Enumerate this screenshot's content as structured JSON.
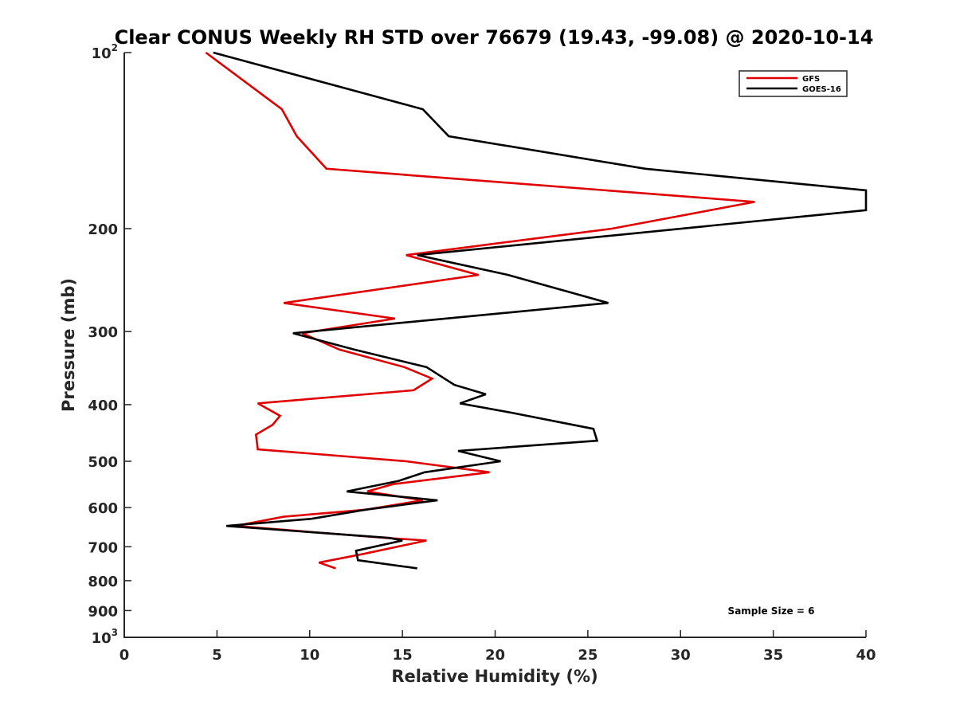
{
  "chart_data": {
    "type": "line",
    "title": "Clear CONUS Weekly RH STD over 76679 (19.43, -99.08) @ 2020-10-14",
    "xlabel": "Relative Humidity (%)",
    "ylabel": "Pressure (mb)",
    "xlim": [
      0,
      40
    ],
    "ylim": [
      100,
      1000
    ],
    "yscale": "log",
    "y_reversed": true,
    "xticks": [
      0,
      5,
      10,
      15,
      20,
      25,
      30,
      35,
      40
    ],
    "xtick_labels": [
      "0",
      "5",
      "10",
      "15",
      "20",
      "25",
      "30",
      "35",
      "40"
    ],
    "yticks": [
      100,
      200,
      300,
      400,
      500,
      600,
      700,
      800,
      900,
      1000
    ],
    "ytick_labels": [
      {
        "base": "10",
        "exp": "2"
      },
      {
        "base": "200",
        "exp": ""
      },
      {
        "base": "300",
        "exp": ""
      },
      {
        "base": "400",
        "exp": ""
      },
      {
        "base": "500",
        "exp": ""
      },
      {
        "base": "600",
        "exp": ""
      },
      {
        "base": "700",
        "exp": ""
      },
      {
        "base": "800",
        "exp": ""
      },
      {
        "base": "900",
        "exp": ""
      },
      {
        "base": "10",
        "exp": "3"
      }
    ],
    "grid": false,
    "legend_position": "top-right",
    "annotation": "Sample Size = 6",
    "series": [
      {
        "name": "GFS",
        "color": "#e00000",
        "points": [
          [
            4.4,
            100
          ],
          [
            8.5,
            125
          ],
          [
            9.3,
            139
          ],
          [
            10.9,
            158
          ],
          [
            34.0,
            180
          ],
          [
            26.3,
            200
          ],
          [
            15.2,
            222
          ],
          [
            19.1,
            240
          ],
          [
            8.6,
            268
          ],
          [
            14.6,
            285
          ],
          [
            9.6,
            302
          ],
          [
            11.6,
            322
          ],
          [
            15.1,
            345
          ],
          [
            16.6,
            361
          ],
          [
            15.6,
            378
          ],
          [
            7.2,
            398
          ],
          [
            8.4,
            418
          ],
          [
            8.0,
            433
          ],
          [
            7.1,
            450
          ],
          [
            7.2,
            477
          ],
          [
            15.2,
            500
          ],
          [
            19.7,
            522
          ],
          [
            14.5,
            547
          ],
          [
            13.1,
            563
          ],
          [
            16.1,
            583
          ],
          [
            13.0,
            605
          ],
          [
            8.6,
            622
          ],
          [
            6.0,
            645
          ],
          [
            14.1,
            676
          ],
          [
            16.3,
            683
          ],
          [
            12.9,
            720
          ],
          [
            10.5,
            745
          ],
          [
            11.4,
            762
          ]
        ]
      },
      {
        "name": "GOES-16",
        "color": "#000000",
        "points": [
          [
            4.8,
            100
          ],
          [
            16.1,
            125
          ],
          [
            17.5,
            139
          ],
          [
            28.1,
            158
          ],
          [
            40.0,
            172
          ],
          [
            40.0,
            186
          ],
          [
            15.8,
            222
          ],
          [
            20.7,
            240
          ],
          [
            26.1,
            268
          ],
          [
            9.1,
            302
          ],
          [
            12.4,
            322
          ],
          [
            16.3,
            345
          ],
          [
            17.8,
            370
          ],
          [
            19.5,
            384
          ],
          [
            18.1,
            398
          ],
          [
            20.9,
            413
          ],
          [
            25.3,
            440
          ],
          [
            25.5,
            461
          ],
          [
            18.0,
            480
          ],
          [
            20.3,
            500
          ],
          [
            16.2,
            522
          ],
          [
            14.8,
            540
          ],
          [
            12.0,
            563
          ],
          [
            16.9,
            583
          ],
          [
            13.0,
            605
          ],
          [
            10.1,
            627
          ],
          [
            5.5,
            645
          ],
          [
            14.3,
            676
          ],
          [
            15.0,
            683
          ],
          [
            12.5,
            711
          ],
          [
            12.6,
            738
          ],
          [
            15.8,
            762
          ]
        ]
      }
    ]
  }
}
